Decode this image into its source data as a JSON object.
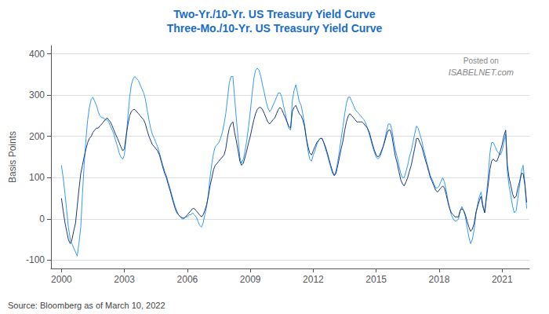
{
  "chart_data": {
    "type": "line",
    "title": "Two-Yr./10-Yr. US Treasury Yield Curve",
    "subtitle": "Three-Mo./10-Yr. US Treasury Yield Curve",
    "ylabel": "Basis Points",
    "source": "Source: Bloomberg as of March 10, 2022",
    "annotations": [
      "Posted on",
      "ISABELNET.com"
    ],
    "x": [
      2000.0,
      2000.08,
      2000.17,
      2000.25,
      2000.33,
      2000.42,
      2000.5,
      2000.58,
      2000.67,
      2000.75,
      2000.83,
      2000.92,
      2001.0,
      2001.08,
      2001.17,
      2001.25,
      2001.33,
      2001.42,
      2001.5,
      2001.58,
      2001.67,
      2001.75,
      2001.83,
      2001.92,
      2002.0,
      2002.08,
      2002.17,
      2002.25,
      2002.33,
      2002.42,
      2002.5,
      2002.58,
      2002.67,
      2002.75,
      2002.83,
      2002.92,
      2003.0,
      2003.08,
      2003.17,
      2003.25,
      2003.33,
      2003.42,
      2003.5,
      2003.58,
      2003.67,
      2003.75,
      2003.83,
      2003.92,
      2004.0,
      2004.08,
      2004.17,
      2004.25,
      2004.33,
      2004.42,
      2004.5,
      2004.58,
      2004.67,
      2004.75,
      2004.83,
      2004.92,
      2005.0,
      2005.08,
      2005.17,
      2005.25,
      2005.33,
      2005.42,
      2005.5,
      2005.58,
      2005.67,
      2005.75,
      2005.83,
      2005.92,
      2006.0,
      2006.08,
      2006.17,
      2006.25,
      2006.33,
      2006.42,
      2006.5,
      2006.58,
      2006.67,
      2006.75,
      2006.83,
      2006.92,
      2007.0,
      2007.08,
      2007.17,
      2007.25,
      2007.33,
      2007.42,
      2007.5,
      2007.58,
      2007.67,
      2007.75,
      2007.83,
      2007.92,
      2008.0,
      2008.08,
      2008.17,
      2008.25,
      2008.33,
      2008.42,
      2008.5,
      2008.58,
      2008.67,
      2008.75,
      2008.83,
      2008.92,
      2009.0,
      2009.08,
      2009.17,
      2009.25,
      2009.33,
      2009.42,
      2009.5,
      2009.58,
      2009.67,
      2009.75,
      2009.83,
      2009.92,
      2010.0,
      2010.08,
      2010.17,
      2010.25,
      2010.33,
      2010.42,
      2010.5,
      2010.58,
      2010.67,
      2010.75,
      2010.83,
      2010.92,
      2011.0,
      2011.08,
      2011.17,
      2011.25,
      2011.33,
      2011.42,
      2011.5,
      2011.58,
      2011.67,
      2011.75,
      2011.83,
      2011.92,
      2012.0,
      2012.08,
      2012.17,
      2012.25,
      2012.33,
      2012.42,
      2012.5,
      2012.58,
      2012.67,
      2012.75,
      2012.83,
      2012.92,
      2013.0,
      2013.08,
      2013.17,
      2013.25,
      2013.33,
      2013.42,
      2013.5,
      2013.58,
      2013.67,
      2013.75,
      2013.83,
      2013.92,
      2014.0,
      2014.08,
      2014.17,
      2014.25,
      2014.33,
      2014.42,
      2014.5,
      2014.58,
      2014.67,
      2014.75,
      2014.83,
      2014.92,
      2015.0,
      2015.08,
      2015.17,
      2015.25,
      2015.33,
      2015.42,
      2015.5,
      2015.58,
      2015.67,
      2015.75,
      2015.83,
      2015.92,
      2016.0,
      2016.08,
      2016.17,
      2016.25,
      2016.33,
      2016.42,
      2016.5,
      2016.58,
      2016.67,
      2016.75,
      2016.83,
      2016.92,
      2017.0,
      2017.08,
      2017.17,
      2017.25,
      2017.33,
      2017.42,
      2017.5,
      2017.58,
      2017.67,
      2017.75,
      2017.83,
      2017.92,
      2018.0,
      2018.08,
      2018.17,
      2018.25,
      2018.33,
      2018.42,
      2018.5,
      2018.58,
      2018.67,
      2018.75,
      2018.83,
      2018.92,
      2019.0,
      2019.08,
      2019.17,
      2019.25,
      2019.33,
      2019.42,
      2019.5,
      2019.58,
      2019.67,
      2019.75,
      2019.83,
      2019.92,
      2020.0,
      2020.08,
      2020.17,
      2020.25,
      2020.33,
      2020.42,
      2020.5,
      2020.58,
      2020.67,
      2020.75,
      2020.83,
      2020.92,
      2021.0,
      2021.08,
      2021.17,
      2021.25,
      2021.33,
      2021.42,
      2021.5,
      2021.58,
      2021.67,
      2021.75,
      2021.83,
      2021.92,
      2022.0,
      2022.08,
      2022.17
    ],
    "series": [
      {
        "color": "#3399ff",
        "values": [
          130,
          100,
          60,
          20,
          -20,
          -50,
          -60,
          -70,
          -80,
          -90,
          -60,
          -20,
          60,
          130,
          195,
          240,
          270,
          290,
          295,
          285,
          275,
          260,
          250,
          245,
          245,
          240,
          240,
          235,
          225,
          215,
          205,
          190,
          175,
          160,
          150,
          145,
          155,
          195,
          250,
          295,
          325,
          340,
          345,
          340,
          335,
          325,
          315,
          305,
          290,
          265,
          240,
          220,
          205,
          195,
          185,
          175,
          160,
          145,
          130,
          115,
          105,
          90,
          75,
          60,
          45,
          30,
          20,
          10,
          5,
          0,
          0,
          5,
          5,
          10,
          10,
          15,
          10,
          5,
          -5,
          -15,
          -20,
          -10,
          10,
          30,
          60,
          100,
          135,
          160,
          175,
          180,
          185,
          195,
          210,
          230,
          255,
          295,
          330,
          345,
          345,
          295,
          245,
          195,
          150,
          135,
          145,
          165,
          190,
          225,
          260,
          300,
          340,
          360,
          365,
          360,
          345,
          325,
          305,
          285,
          270,
          260,
          265,
          275,
          285,
          295,
          305,
          305,
          295,
          275,
          255,
          235,
          220,
          215,
          285,
          310,
          325,
          305,
          285,
          275,
          255,
          230,
          195,
          165,
          145,
          140,
          155,
          165,
          180,
          190,
          195,
          195,
          185,
          170,
          155,
          140,
          125,
          110,
          105,
          115,
          140,
          165,
          195,
          225,
          255,
          280,
          295,
          295,
          285,
          275,
          265,
          260,
          255,
          250,
          245,
          240,
          232,
          220,
          205,
          190,
          175,
          160,
          150,
          145,
          150,
          160,
          175,
          195,
          215,
          230,
          230,
          215,
          190,
          165,
          150,
          130,
          110,
          100,
          100,
          115,
          130,
          150,
          165,
          185,
          205,
          225,
          220,
          205,
          190,
          170,
          155,
          135,
          120,
          105,
          95,
          85,
          75,
          75,
          80,
          90,
          100,
          90,
          70,
          45,
          25,
          10,
          0,
          -5,
          -5,
          0,
          20,
          30,
          20,
          5,
          -20,
          -45,
          -60,
          -50,
          -25,
          10,
          35,
          55,
          65,
          35,
          15,
          55,
          100,
          160,
          185,
          185,
          175,
          165,
          160,
          155,
          165,
          185,
          205,
          115,
          80,
          55,
          30,
          15,
          20,
          50,
          80,
          115,
          130,
          90,
          25
        ]
      },
      {
        "color": "#1a3a7a",
        "values": [
          50,
          20,
          -10,
          -30,
          -50,
          -60,
          -50,
          -30,
          -10,
          30,
          70,
          110,
          130,
          150,
          170,
          185,
          195,
          200,
          210,
          215,
          220,
          220,
          225,
          230,
          235,
          240,
          245,
          240,
          235,
          225,
          215,
          205,
          195,
          185,
          175,
          165,
          170,
          200,
          230,
          250,
          260,
          265,
          265,
          260,
          255,
          250,
          245,
          240,
          230,
          215,
          200,
          190,
          180,
          175,
          170,
          165,
          155,
          140,
          125,
          110,
          100,
          85,
          70,
          55,
          40,
          25,
          15,
          10,
          5,
          3,
          2,
          5,
          10,
          15,
          20,
          25,
          25,
          20,
          15,
          10,
          5,
          10,
          20,
          35,
          55,
          80,
          100,
          120,
          130,
          135,
          140,
          145,
          150,
          155,
          170,
          200,
          220,
          230,
          235,
          210,
          190,
          165,
          140,
          130,
          135,
          150,
          165,
          185,
          200,
          220,
          240,
          255,
          265,
          270,
          270,
          265,
          255,
          245,
          235,
          230,
          235,
          240,
          245,
          255,
          265,
          270,
          265,
          255,
          245,
          235,
          225,
          220,
          260,
          270,
          275,
          265,
          255,
          250,
          240,
          225,
          195,
          175,
          160,
          155,
          165,
          175,
          185,
          190,
          195,
          195,
          185,
          175,
          160,
          145,
          130,
          115,
          105,
          110,
          130,
          150,
          170,
          190,
          215,
          235,
          250,
          255,
          250,
          245,
          240,
          235,
          235,
          235,
          235,
          230,
          225,
          220,
          210,
          195,
          180,
          165,
          155,
          150,
          155,
          165,
          175,
          190,
          205,
          215,
          215,
          200,
          175,
          150,
          135,
          115,
          95,
          85,
          80,
          90,
          100,
          115,
          130,
          150,
          170,
          195,
          195,
          185,
          175,
          160,
          145,
          130,
          115,
          100,
          90,
          80,
          70,
          65,
          70,
          75,
          80,
          75,
          60,
          40,
          25,
          15,
          10,
          5,
          5,
          5,
          20,
          25,
          20,
          10,
          -5,
          -20,
          -30,
          -25,
          -10,
          15,
          30,
          45,
          55,
          30,
          15,
          50,
          80,
          120,
          140,
          145,
          140,
          140,
          150,
          165,
          180,
          200,
          215,
          130,
          100,
          80,
          60,
          50,
          55,
          75,
          90,
          110,
          110,
          85,
          40
        ]
      }
    ],
    "xlim": [
      1999.5,
      2022.3
    ],
    "xticks": [
      2000,
      2003,
      2006,
      2009,
      2012,
      2015,
      2018,
      2021
    ],
    "ylim": [
      -120,
      420
    ],
    "yticks": [
      -100,
      0,
      100,
      200,
      300,
      400
    ],
    "grid": true
  }
}
